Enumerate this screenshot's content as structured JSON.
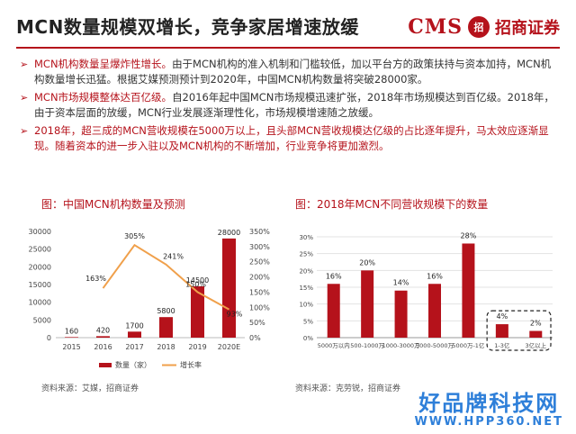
{
  "header": {
    "title": "MCN数量规模双增长，竞争家居增速放缓",
    "logo_cms": "CMS",
    "logo_badge": "招",
    "logo_name": "招商证券"
  },
  "bullets": [
    {
      "highlight": "MCN机构数量呈爆炸性增长。",
      "text": "由于MCN机构的准入机制和门槛较低，加以平台方的政策扶持与资本加持，MCN机构数量增长迅猛。根据艾媒预测预计到2020年，中国MCN机构数量将突破28000家。"
    },
    {
      "highlight": "MCN市场规模整体达百亿级。",
      "text": "自2016年起中国MCN市场规模迅速扩张，2018年市场规模达到百亿级。2018年，由于资本层面的放缓，MCN行业发展逐渐理性化，市场规模增速随之放缓。"
    },
    {
      "highlight": "",
      "text": "2018年，超三成的MCN营收规模在5000万以上，且头部MCN营收规模达亿级的占比逐年提升，马太效应逐渐显现。随着资本的进一步入驻以及MCN机构的不断增加，行业竞争将更加激烈。"
    }
  ],
  "chart1": {
    "title": "图：中国MCN机构数量及预测",
    "source": "资料来源：艾媒，招商证券"
  },
  "chart2": {
    "title": "图：2018年MCN不同营收规模下的数量",
    "source": "资料来源：克劳锐，招商证券"
  },
  "watermark": {
    "line1": "好品牌科技网",
    "line2": "WWW.HPP360.NET"
  },
  "colors": {
    "accent": "#b5121b",
    "line": "#f0a04b"
  },
  "chart_data": [
    {
      "type": "bar",
      "categories": [
        "2015",
        "2016",
        "2017",
        "2018",
        "2019",
        "2020E"
      ],
      "series": [
        {
          "name": "数量（家）",
          "values": [
            160,
            420,
            1700,
            5800,
            14500,
            28000
          ]
        },
        {
          "name": "增长率",
          "type": "line",
          "axis": "right",
          "values": [
            null,
            163,
            305,
            241,
            150,
            93
          ]
        }
      ],
      "data_labels": {
        "bars": [
          "160",
          "420",
          "1700",
          "5800",
          "14500",
          "28000"
        ],
        "line": [
          "",
          "163%",
          "305%",
          "241%",
          "150%",
          "93%"
        ]
      },
      "yticks": [
        "0",
        "5000",
        "10000",
        "15000",
        "20000",
        "25000",
        "30000"
      ],
      "y2ticks": [
        "0%",
        "50%",
        "100%",
        "150%",
        "200%",
        "250%",
        "300%",
        "350%"
      ],
      "ylim": [
        0,
        30000
      ],
      "y2lim": [
        0,
        350
      ],
      "legend": "bottom",
      "grid": false
    },
    {
      "type": "bar",
      "categories": [
        "5000万以内",
        "500-1000万",
        "1000-3000万",
        "3000-5000万",
        "5000万-1亿",
        "1-3亿",
        "3亿以上"
      ],
      "values": [
        16,
        20,
        14,
        16,
        28,
        4,
        2
      ],
      "data_labels": [
        "16%",
        "20%",
        "14%",
        "16%",
        "28%",
        "4%",
        "2%"
      ],
      "yticks": [
        "0%",
        "5%",
        "10%",
        "15%",
        "20%",
        "25%",
        "30%"
      ],
      "ylim": [
        0,
        30
      ],
      "grid": true,
      "highlight_box": [
        "1-3亿",
        "3亿以上"
      ]
    }
  ]
}
